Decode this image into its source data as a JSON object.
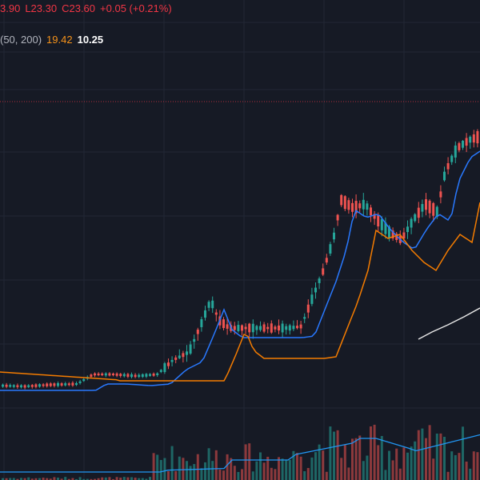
{
  "legend": {
    "open_partial": "3.90",
    "low_key": "L",
    "low": "23.30",
    "close_key": "C",
    "close": "23.60",
    "change": "+0.05 (+0.21%)",
    "ma_params": "(50, 200)",
    "ma50": "19.42",
    "ma200": "10.25"
  },
  "colors": {
    "background": "#161a25",
    "grid": "#232838",
    "up": "#26a69a",
    "down": "#ef5350",
    "ma_blue": "#2962ff",
    "ma_orange": "#f7931a",
    "ma_white": "#ffffff",
    "price_line": "#f23645"
  },
  "chart_data": {
    "type": "candlestick",
    "price_line": 23.6,
    "ylim": [
      0,
      30
    ],
    "grid": true
  }
}
